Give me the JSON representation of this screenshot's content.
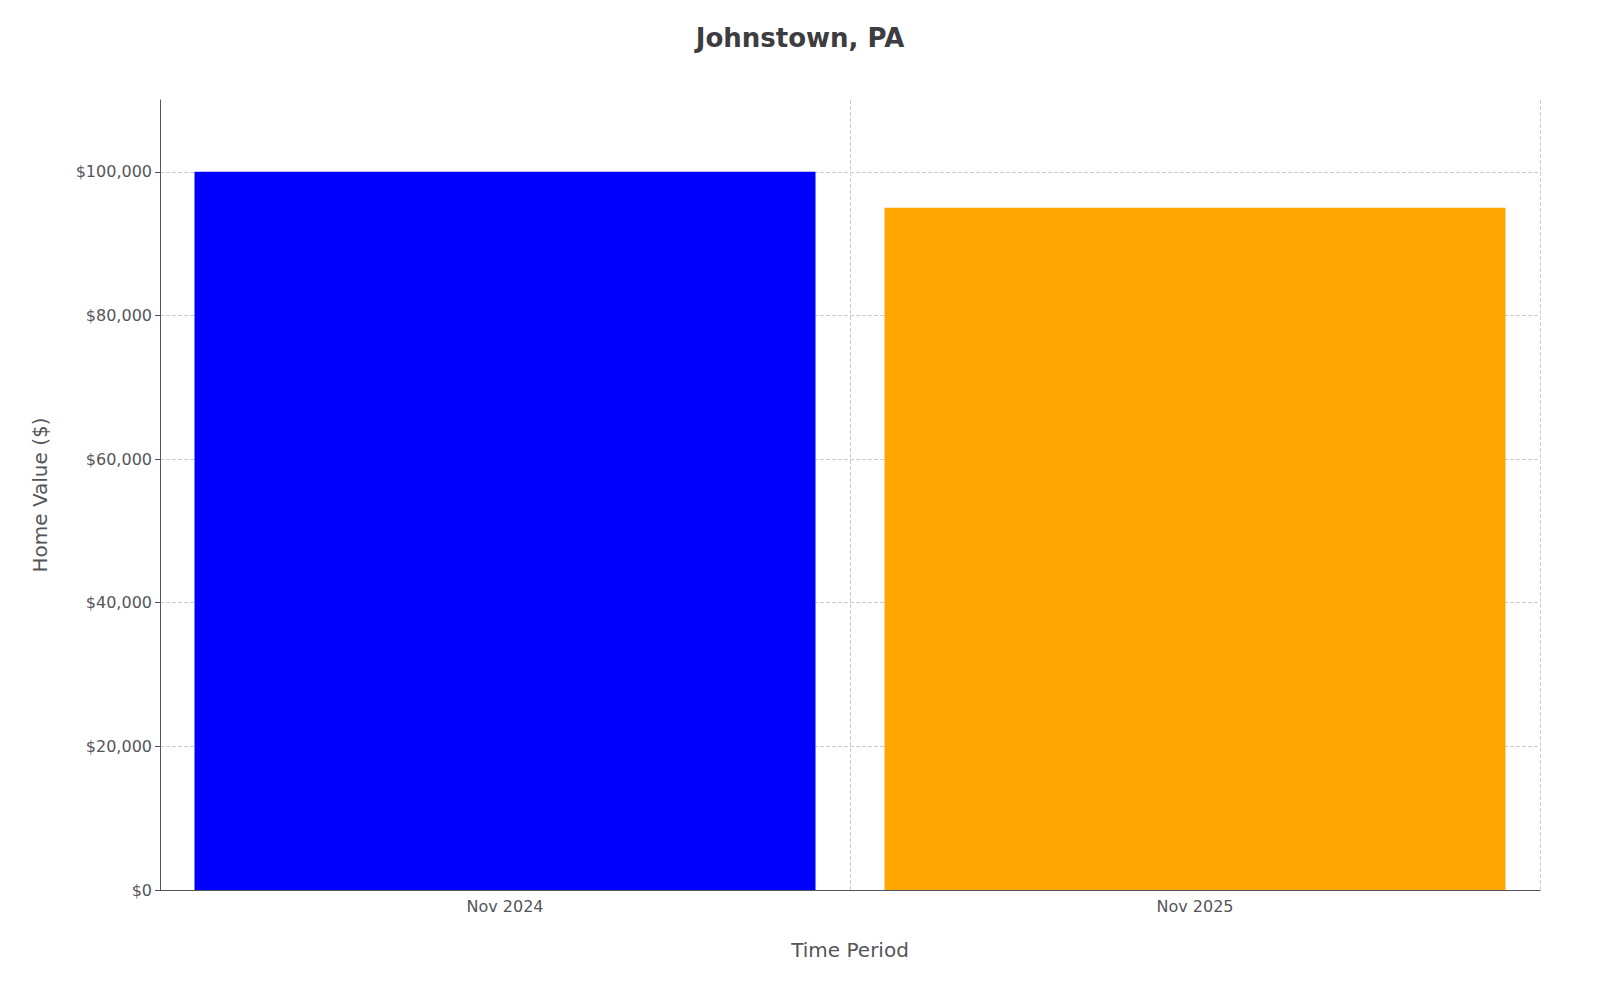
{
  "chart_data": {
    "type": "bar",
    "title": "Johnstown, PA",
    "xlabel": "Time Period",
    "ylabel": "Home Value ($)",
    "categories": [
      "Nov 2024",
      "Nov 2025"
    ],
    "values": [
      100000,
      95000
    ],
    "colors": [
      "#0000ff",
      "#ffa500"
    ],
    "ylim": [
      0,
      110000
    ],
    "yticks": [
      {
        "value": 0,
        "label": "$0"
      },
      {
        "value": 20000,
        "label": "$20,000"
      },
      {
        "value": 40000,
        "label": "$40,000"
      },
      {
        "value": 60000,
        "label": "$60,000"
      },
      {
        "value": 80000,
        "label": "$80,000"
      },
      {
        "value": 100000,
        "label": "$100,000"
      }
    ],
    "grid": true
  }
}
